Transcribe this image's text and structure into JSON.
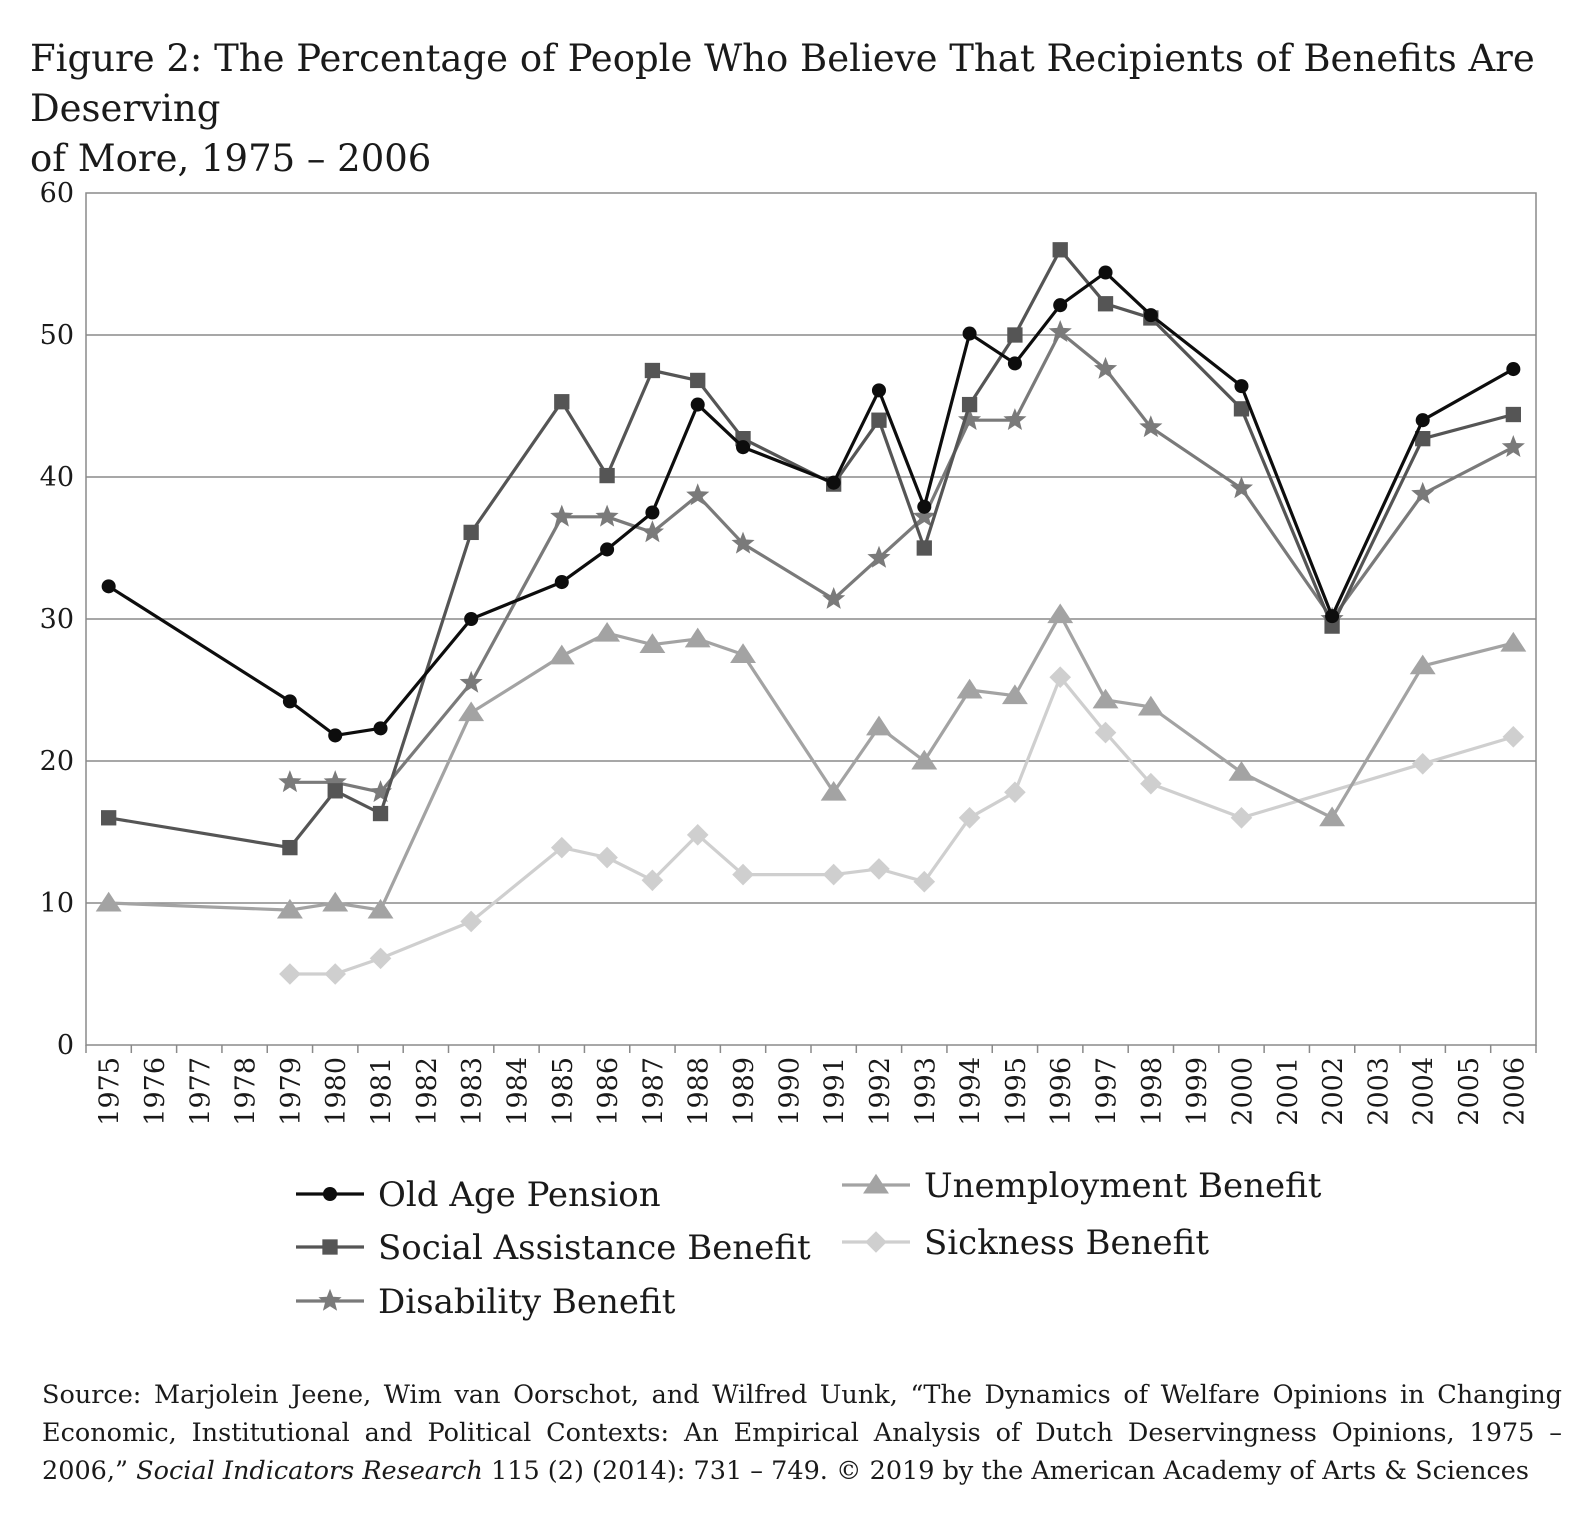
{
  "title": {
    "line1": "Figure 2: The Percentage of People Who Believe That Recipients of Benefits Are Deserving",
    "line2": "of More, 1975 – 2006"
  },
  "source": {
    "part1": "Source: Marjolein Jeene, Wim van Oorschot, and Wilfred Uunk, “The Dynamics of Welfare Opinions in Changing Economic, Institutional and Political Contexts: An Empirical Analysis of Dutch Deservingness Opinions, 1975 – 2006,” ",
    "journal": "Social Indicators Research",
    "part2": " 115 (2) (2014): 731 – 749. © 2019 by the American Academy of Arts & Sciences"
  },
  "chart_data": {
    "type": "line",
    "title": "Figure 2: The Percentage of People Who Believe That Recipients of Benefits Are Deserving of More, 1975 – 2006",
    "categories": [
      "1975",
      "1976",
      "1977",
      "1978",
      "1979",
      "1980",
      "1981",
      "1982",
      "1983",
      "1984",
      "1985",
      "1986",
      "1987",
      "1988",
      "1989",
      "1990",
      "1991",
      "1992",
      "1993",
      "1994",
      "1995",
      "1996",
      "1997",
      "1998",
      "1999",
      "2000",
      "2001",
      "2002",
      "2003",
      "2004",
      "2005",
      "2006"
    ],
    "ylim": [
      0,
      60
    ],
    "yticks": [
      "0",
      "10",
      "20",
      "30",
      "40",
      "50",
      "60"
    ],
    "grid": "horizontal",
    "legend_position": "bottom",
    "series": [
      {
        "name": "Old Age Pension",
        "marker": "circle",
        "color": "#0d0d0d",
        "points": [
          [
            "1975",
            32.3
          ],
          [
            "1979",
            24.2
          ],
          [
            "1980",
            21.8
          ],
          [
            "1981",
            22.3
          ],
          [
            "1983",
            30.0
          ],
          [
            "1985",
            32.6
          ],
          [
            "1986",
            34.9
          ],
          [
            "1987",
            37.5
          ],
          [
            "1988",
            45.1
          ],
          [
            "1989",
            42.1
          ],
          [
            "1991",
            39.6
          ],
          [
            "1992",
            46.1
          ],
          [
            "1993",
            37.9
          ],
          [
            "1994",
            50.1
          ],
          [
            "1995",
            48.0
          ],
          [
            "1996",
            52.1
          ],
          [
            "1997",
            54.4
          ],
          [
            "1998",
            51.4
          ],
          [
            "2000",
            46.4
          ],
          [
            "2002",
            30.2
          ],
          [
            "2004",
            44.0
          ],
          [
            "2006",
            47.6
          ]
        ]
      },
      {
        "name": "Social Assistance Benefit",
        "marker": "square",
        "color": "#555555",
        "points": [
          [
            "1975",
            16.0
          ],
          [
            "1979",
            13.9
          ],
          [
            "1980",
            17.9
          ],
          [
            "1981",
            16.3
          ],
          [
            "1983",
            36.1
          ],
          [
            "1985",
            45.3
          ],
          [
            "1986",
            40.1
          ],
          [
            "1987",
            47.5
          ],
          [
            "1988",
            46.8
          ],
          [
            "1989",
            42.7
          ],
          [
            "1991",
            39.5
          ],
          [
            "1992",
            44.0
          ],
          [
            "1993",
            35.0
          ],
          [
            "1994",
            45.1
          ],
          [
            "1995",
            50.0
          ],
          [
            "1996",
            56.0
          ],
          [
            "1997",
            52.2
          ],
          [
            "1998",
            51.2
          ],
          [
            "2000",
            44.8
          ],
          [
            "2002",
            29.5
          ],
          [
            "2004",
            42.7
          ],
          [
            "2006",
            44.4
          ]
        ]
      },
      {
        "name": "Disability Benefit",
        "marker": "star",
        "color": "#7a7a7a",
        "points": [
          [
            "1979",
            18.5
          ],
          [
            "1980",
            18.5
          ],
          [
            "1981",
            17.8
          ],
          [
            "1983",
            25.5
          ],
          [
            "1985",
            37.2
          ],
          [
            "1986",
            37.2
          ],
          [
            "1987",
            36.1
          ],
          [
            "1988",
            38.7
          ],
          [
            "1989",
            35.3
          ],
          [
            "1991",
            31.4
          ],
          [
            "1992",
            34.3
          ],
          [
            "1993",
            37.2
          ],
          [
            "1994",
            44.0
          ],
          [
            "1995",
            44.0
          ],
          [
            "1996",
            50.2
          ],
          [
            "1997",
            47.6
          ],
          [
            "1998",
            43.5
          ],
          [
            "2000",
            39.2
          ],
          [
            "2002",
            30.0
          ],
          [
            "2004",
            38.8
          ],
          [
            "2006",
            42.1
          ]
        ]
      },
      {
        "name": "Unemployment Benefit",
        "marker": "triangle",
        "color": "#a3a3a3",
        "points": [
          [
            "1975",
            10.0
          ],
          [
            "1979",
            9.5
          ],
          [
            "1980",
            10.0
          ],
          [
            "1981",
            9.5
          ],
          [
            "1983",
            23.4
          ],
          [
            "1985",
            27.4
          ],
          [
            "1986",
            29.0
          ],
          [
            "1987",
            28.2
          ],
          [
            "1988",
            28.6
          ],
          [
            "1989",
            27.5
          ],
          [
            "1991",
            17.8
          ],
          [
            "1992",
            22.4
          ],
          [
            "1993",
            20.0
          ],
          [
            "1994",
            25.0
          ],
          [
            "1995",
            24.6
          ],
          [
            "1996",
            30.3
          ],
          [
            "1997",
            24.3
          ],
          [
            "1998",
            23.8
          ],
          [
            "2000",
            19.2
          ],
          [
            "2002",
            16.0
          ],
          [
            "2004",
            26.7
          ],
          [
            "2006",
            28.3
          ]
        ]
      },
      {
        "name": "Sickness Benefit",
        "marker": "diamond",
        "color": "#cfcfcf",
        "points": [
          [
            "1979",
            5.0
          ],
          [
            "1980",
            5.0
          ],
          [
            "1981",
            6.1
          ],
          [
            "1983",
            8.7
          ],
          [
            "1985",
            13.9
          ],
          [
            "1986",
            13.2
          ],
          [
            "1987",
            11.6
          ],
          [
            "1988",
            14.8
          ],
          [
            "1989",
            12.0
          ],
          [
            "1991",
            12.0
          ],
          [
            "1992",
            12.4
          ],
          [
            "1993",
            11.5
          ],
          [
            "1994",
            16.0
          ],
          [
            "1995",
            17.8
          ],
          [
            "1996",
            25.9
          ],
          [
            "1997",
            22.0
          ],
          [
            "1998",
            18.4
          ],
          [
            "2000",
            16.0
          ],
          [
            "2004",
            19.8
          ],
          [
            "2006",
            21.7
          ]
        ]
      }
    ]
  }
}
